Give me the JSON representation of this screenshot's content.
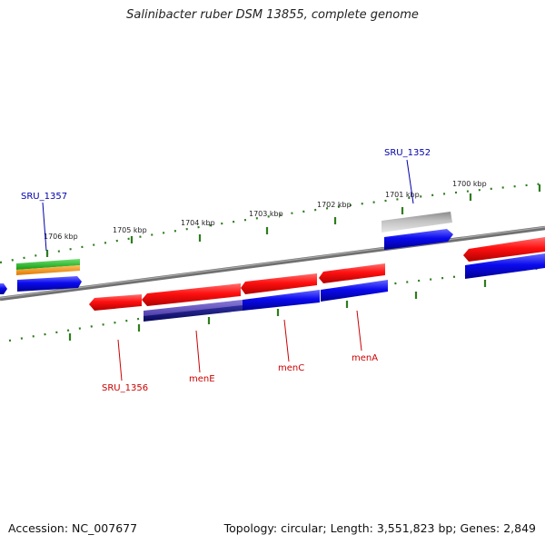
{
  "title": "Salinibacter ruber DSM 13855, complete genome",
  "footer": {
    "accession": "Accession: NC_007677",
    "summary": "Topology: circular; Length: 3,551,823 bp; Genes: 2,849"
  },
  "scale_labels": [
    "1700 kbp",
    "1701 kbp",
    "1702 kbp",
    "1703 kbp",
    "1704 kbp",
    "1705 kbp",
    "1706 kbp"
  ],
  "gene_labels": {
    "sru_1352": "SRU_1352",
    "sru_1357": "SRU_1357",
    "sru_1356": "SRU_1356",
    "menE": "menE",
    "menC": "menC",
    "menA": "menA"
  },
  "colors": {
    "backbone": "#808080",
    "tick": "#2e7d1e",
    "gene": "#e8141c",
    "cds": "#1818e0",
    "pseudo": "#b0b0b0",
    "label_forward": "#0000aa",
    "label_reverse": "#cc0000"
  }
}
